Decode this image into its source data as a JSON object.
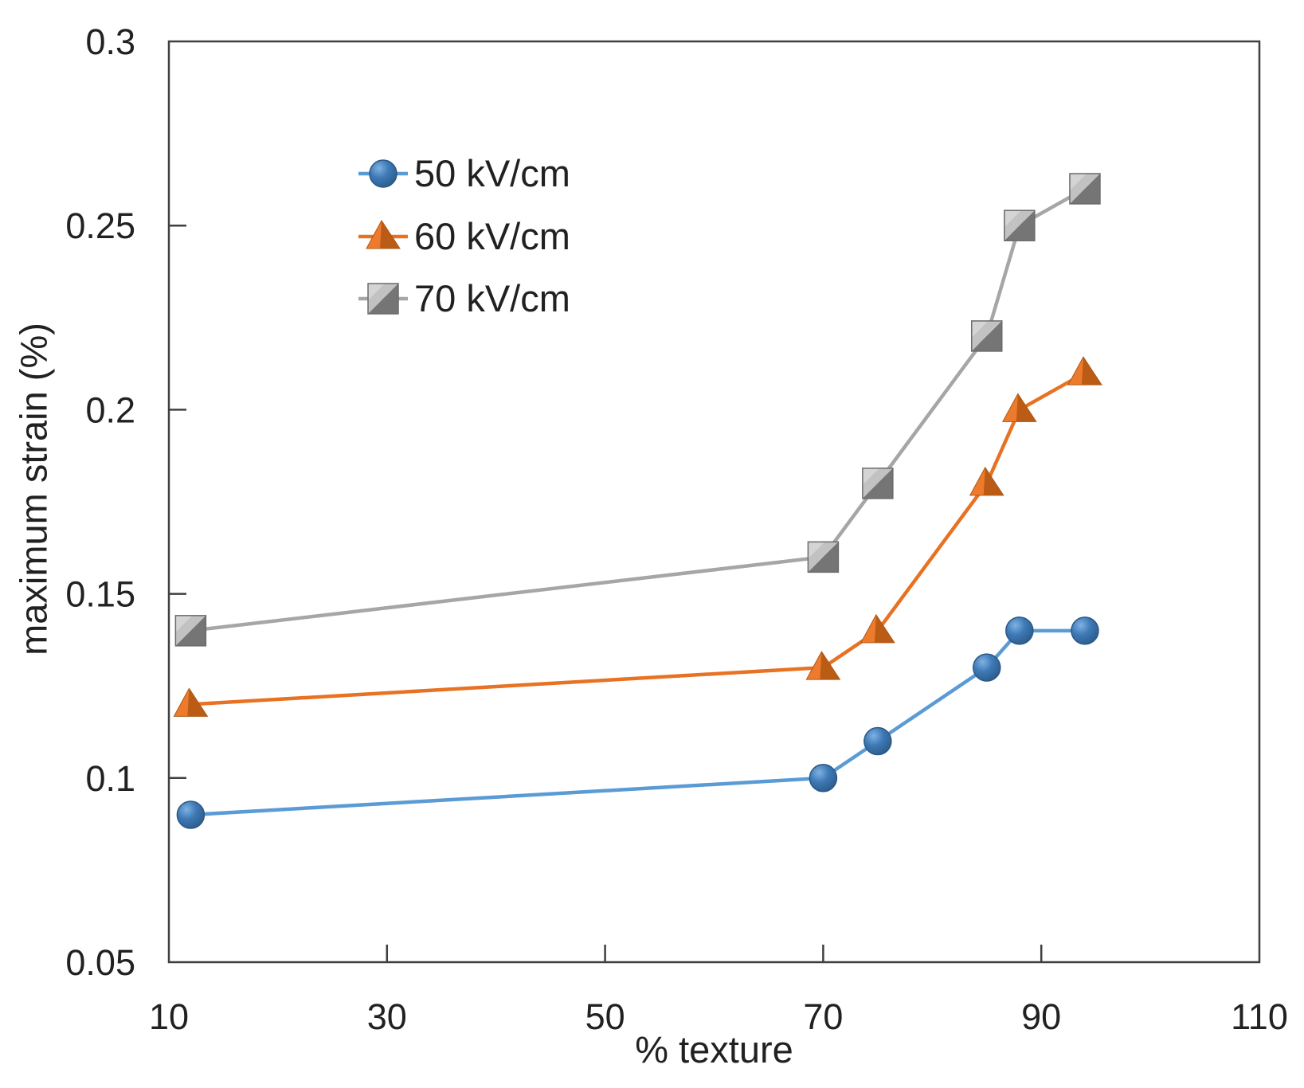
{
  "figure": {
    "background": "#ffffff",
    "axis_border_color": "#3f3f3f",
    "text_color": "#212121"
  },
  "chart_data": {
    "type": "line",
    "title": "",
    "xlabel": "% texture",
    "ylabel": "maximum strain (%)",
    "xlim": [
      10,
      110
    ],
    "ylim": [
      0.05,
      0.3
    ],
    "grid": false,
    "legend_position": "upper-left-inside",
    "x_ticks": [
      {
        "value": 10,
        "label": "10"
      },
      {
        "value": 30,
        "label": "30"
      },
      {
        "value": 50,
        "label": "50"
      },
      {
        "value": 70,
        "label": "70"
      },
      {
        "value": 90,
        "label": "90"
      },
      {
        "value": 110,
        "label": "110"
      }
    ],
    "y_ticks": [
      {
        "value": 0.3,
        "label": "0.3"
      },
      {
        "value": 0.25,
        "label": "0.25"
      },
      {
        "value": 0.2,
        "label": "0.2"
      },
      {
        "value": 0.15,
        "label": "0.15"
      },
      {
        "value": 0.1,
        "label": "0.1"
      },
      {
        "value": 0.05,
        "label": "0.05"
      }
    ],
    "x": [
      12,
      70,
      75,
      85,
      88,
      94
    ],
    "series": [
      {
        "name": "50 kV/cm",
        "marker": "circle",
        "line_color": "#5B9BD5",
        "marker_light": "#7FB2E2",
        "marker_mid": "#3E79B6",
        "marker_dark": "#2B5886",
        "values": [
          0.09,
          0.1,
          0.11,
          0.13,
          0.14,
          0.14
        ]
      },
      {
        "name": "60 kV/cm",
        "marker": "triangle",
        "line_color": "#E87223",
        "marker_light": "#EE7B2D",
        "marker_mid": "#D96D1F",
        "marker_dark": "#B05713",
        "values": [
          0.12,
          0.13,
          0.14,
          0.18,
          0.2,
          0.21
        ]
      },
      {
        "name": "70 kV/cm",
        "marker": "square",
        "line_color": "#A6A6A6",
        "marker_light": "#C2C2C2",
        "marker_mid": "#9A9A9A",
        "marker_dark": "#757575",
        "values": [
          0.14,
          0.16,
          0.18,
          0.22,
          0.25,
          0.26
        ]
      }
    ]
  }
}
